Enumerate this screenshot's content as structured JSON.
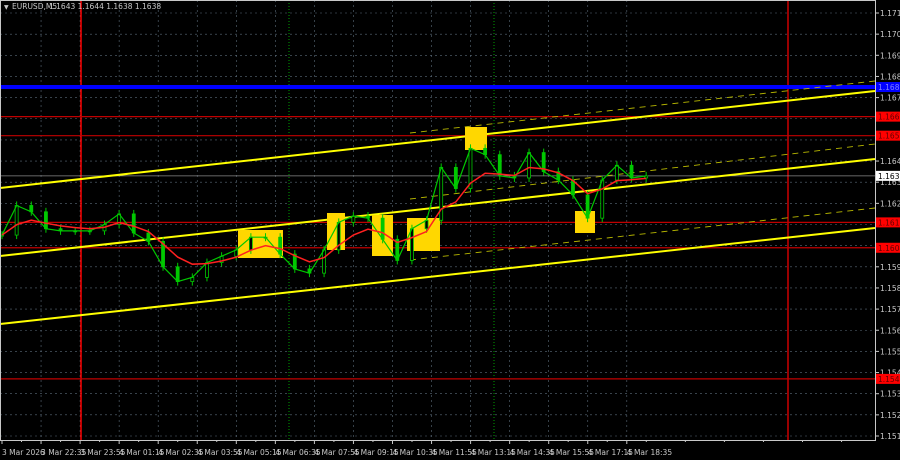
{
  "header": {
    "symbol": "EURUSD,M5",
    "ohlc": "1.1643 1.1644 1.1638 1.1638"
  },
  "colors": {
    "background": "#000000",
    "candles": "#00c800",
    "moving_average": "#ff2020",
    "channel": "#ffff00",
    "resistance_blue": "#0000ff",
    "level_red": "#c00000",
    "signal_box": "#ffd700",
    "grid": "#5a6a78"
  },
  "chart_data": {
    "type": "line",
    "title": "",
    "xlabel": "",
    "ylabel": "",
    "ylim": [
      1.151,
      1.172
    ],
    "grid": true,
    "x": [
      "3 Mar 21:15",
      "3 Mar 21:45",
      "3 Mar 22:15",
      "3 Mar 22:45",
      "3 Mar 23:15",
      "3 Mar 23:45",
      "4 Mar 00:15",
      "4 Mar 00:45",
      "4 Mar 01:15",
      "4 Mar 01:45",
      "4 Mar 02:15",
      "4 Mar 02:45",
      "4 Mar 03:15",
      "4 Mar 03:45",
      "4 Mar 04:15",
      "4 Mar 04:45",
      "4 Mar 05:15",
      "4 Mar 05:45",
      "4 Mar 06:15",
      "4 Mar 06:45",
      "4 Mar 07:15",
      "4 Mar 07:45",
      "4 Mar 08:15",
      "4 Mar 08:45",
      "4 Mar 09:15",
      "4 Mar 09:45",
      "4 Mar 10:15",
      "4 Mar 10:45",
      "4 Mar 11:15",
      "4 Mar 11:45",
      "4 Mar 12:15",
      "4 Mar 12:45",
      "4 Mar 13:15",
      "4 Mar 13:45",
      "4 Mar 14:15",
      "4 Mar 14:45",
      "4 Mar 15:15",
      "4 Mar 15:45",
      "4 Mar 16:15",
      "4 Mar 16:45",
      "4 Mar 17:15",
      "4 Mar 17:45",
      "4 Mar 18:15",
      "4 Mar 18:45",
      "4 Mar 19:15"
    ],
    "series": [
      {
        "values": [
          1.161,
          1.1624,
          1.1621,
          1.1613,
          1.1612,
          1.1612,
          1.1612,
          1.1615,
          1.162,
          1.1611,
          1.1607,
          1.1595,
          1.1588,
          1.159,
          1.1597,
          1.16,
          1.1603,
          1.1609,
          1.1609,
          1.1601,
          1.1594,
          1.1592,
          1.1603,
          1.1616,
          1.1619,
          1.1618,
          1.1608,
          1.1598,
          1.1613,
          1.1617,
          1.1642,
          1.1632,
          1.1651,
          1.1648,
          1.1638,
          1.1637,
          1.1649,
          1.164,
          1.1636,
          1.1629,
          1.1618,
          1.1636,
          1.1643,
          1.1637,
          1.1638
        ]
      }
    ],
    "x_tick_labels": [
      "3 Mar 2026",
      "3 Mar 22:35",
      "3 Mar 23:55",
      "4 Mar 01:15",
      "4 Mar 02:35",
      "4 Mar 03:55",
      "4 Mar 05:15",
      "4 Mar 06:35",
      "4 Mar 07:55",
      "4 Mar 09:15",
      "4 Mar 10:35",
      "4 Mar 11:55",
      "4 Mar 13:15",
      "4 Mar 14:35",
      "4 Mar 15:55",
      "4 Mar 17:15",
      "4 Mar 18:35"
    ],
    "y_tick_labels": [
      "1.1715",
      "1.1705",
      "1.1695",
      "1.1685",
      "1.1675",
      "1.1645",
      "1.1635",
      "1.1625",
      "1.1595",
      "1.1585",
      "1.1575",
      "1.1565",
      "1.1555",
      "1.1545",
      "1.1535",
      "1.1525",
      "1.1515"
    ],
    "horizontal_levels": [
      {
        "price": 1.168,
        "label": "1.1680",
        "color": "#0000ff"
      },
      {
        "price": 1.1666,
        "label": "1.1666",
        "color": "#c00000"
      },
      {
        "price": 1.1657,
        "label": "1.1657",
        "color": "#c00000"
      },
      {
        "price": 1.1616,
        "label": "1.1616",
        "color": "#c00000"
      },
      {
        "price": 1.1604,
        "label": "1.1604",
        "color": "#c00000"
      },
      {
        "price": 1.1542,
        "label": "1.1542",
        "color": "#c00000"
      }
    ],
    "current_price": {
      "price": 1.1638,
      "label": "1.1638"
    }
  }
}
